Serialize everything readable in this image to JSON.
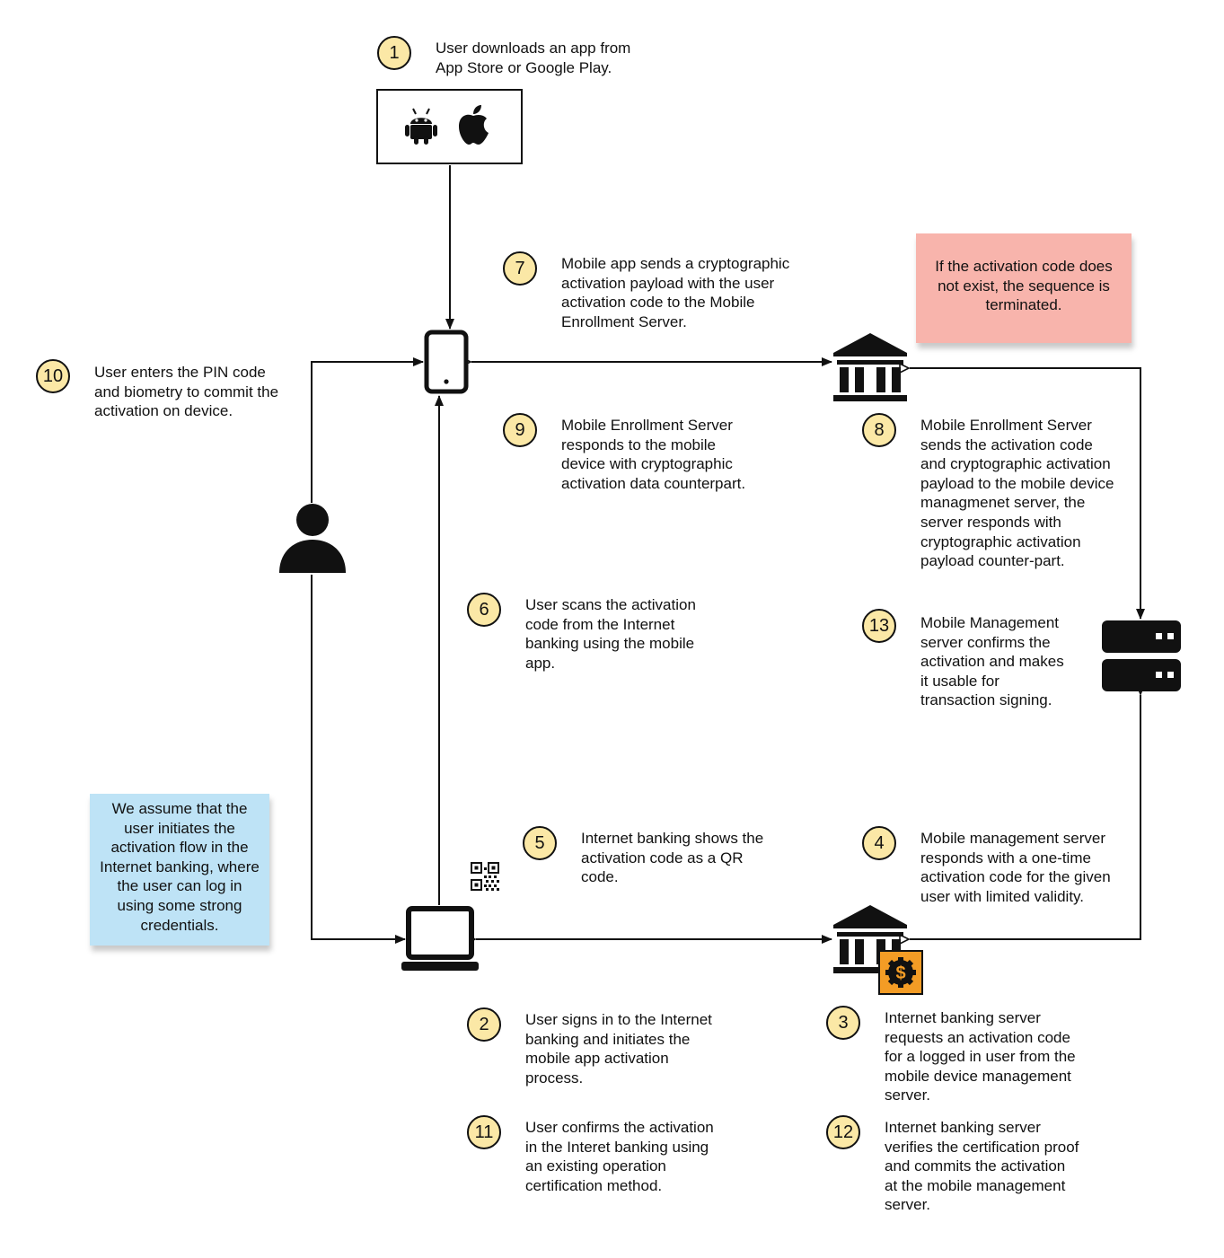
{
  "steps": [
    {
      "number": "1",
      "lines": [
        "User downloads an app from",
        "App Store or Google Play."
      ]
    },
    {
      "number": "2",
      "lines": [
        "User signs in to the Internet",
        "banking and initiates the",
        "mobile app activation",
        "process."
      ]
    },
    {
      "number": "3",
      "lines": [
        "Internet banking server",
        "requests an activation code",
        "for a logged in user from the",
        "mobile device management",
        "server."
      ]
    },
    {
      "number": "4",
      "lines": [
        "Mobile management server",
        "responds with a one-time",
        "activation code for the given",
        "user with limited validity."
      ]
    },
    {
      "number": "5",
      "lines": [
        "Internet banking shows the",
        "activation code as a QR",
        "code."
      ]
    },
    {
      "number": "6",
      "lines": [
        "User scans the activation",
        "code from the Internet",
        "banking using the mobile",
        "app."
      ]
    },
    {
      "number": "7",
      "lines": [
        "Mobile app sends a cryptographic",
        "activation payload with the user",
        "activation code to the Mobile",
        "Enrollment Server."
      ]
    },
    {
      "number": "8",
      "lines": [
        "Mobile Enrollment Server",
        "sends the activation code",
        "and cryptographic activation",
        "payload to the mobile device",
        "managmenet server, the",
        "server responds with",
        "cryptographic activation",
        "payload counter-part."
      ]
    },
    {
      "number": "9",
      "lines": [
        "Mobile Enrollment Server",
        "responds to the mobile",
        "device with cryptographic",
        "activation data counterpart."
      ]
    },
    {
      "number": "10",
      "lines": [
        "User enters the PIN code",
        "and biometry to commit the",
        "activation on device."
      ]
    },
    {
      "number": "11",
      "lines": [
        "User confirms the activation",
        "in the Interet banking using",
        "an existing operation",
        "certification method."
      ]
    },
    {
      "number": "12",
      "lines": [
        "Internet banking server",
        "verifies the certification proof",
        "and commits the activation",
        "at the mobile management",
        "server."
      ]
    },
    {
      "number": "13",
      "lines": [
        "Mobile Management",
        "server confirms the",
        "activation and makes",
        "it usable for",
        "transaction signing."
      ]
    }
  ],
  "notes": {
    "termination": [
      "If the activation code does",
      "not exist, the sequence is",
      "terminated."
    ],
    "assumption": [
      "We assume that the",
      "user initiates the",
      "activation flow in the",
      "Internet banking, where",
      "the user can log in",
      "using some strong",
      "credentials."
    ]
  },
  "icons": {
    "store": [
      "android-icon",
      "apple-icon"
    ],
    "phone": "mobile-phone-icon",
    "user": "user-icon",
    "laptop": "laptop-icon",
    "qr": "qr-code-icon",
    "enrollment_server": "bank-icon",
    "internet_banking_server": "bank-icon",
    "banking_badge": "dollar-icon",
    "mobile_management_server": "server-icon"
  },
  "colors": {
    "badge_fill": "#fbe8a6",
    "note_red": "#f8b4ac",
    "note_blue": "#bee3f6",
    "dollar_badge": "#f39c25",
    "stroke": "#111111"
  }
}
